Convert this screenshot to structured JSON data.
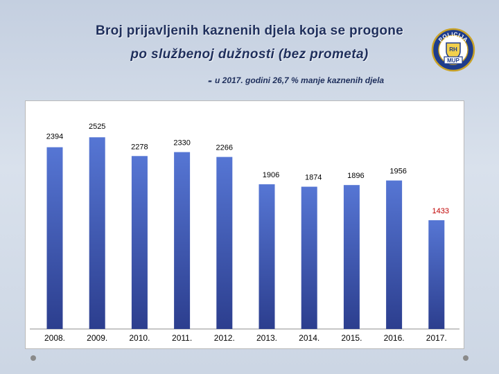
{
  "title": {
    "line1": "Broj prijavljenih kaznenih djela koja se progone",
    "line2": "po službenoj dužnosti (bez prometa)",
    "note_dash": "-",
    "note": "u 2017. godini 26,7 % manje kaznenih djela"
  },
  "logo": {
    "icon": "police-badge-icon",
    "top_text": "POLICIJA",
    "bottom_text": "MUP",
    "shield_text": "RH"
  },
  "colors": {
    "bar": "#4f6ec8",
    "bar_dark": "#2c3e8e",
    "label": "#000000",
    "highlight_label": "#c00000",
    "title": "#1f2f5c"
  },
  "chart_data": {
    "type": "bar",
    "categories": [
      "2008.",
      "2009.",
      "2010.",
      "2011.",
      "2012.",
      "2013.",
      "2014.",
      "2015.",
      "2016.",
      "2017."
    ],
    "values": [
      2394,
      2525,
      2278,
      2330,
      2266,
      1906,
      1874,
      1896,
      1956,
      1433
    ],
    "labels": [
      "2394",
      "2525",
      "2278",
      "2330",
      "2266",
      "1906",
      "1874",
      "1896",
      "1956",
      "1433"
    ],
    "highlight_index": 9,
    "ylim": [
      0,
      2600
    ],
    "grid": false,
    "legend": "none"
  }
}
